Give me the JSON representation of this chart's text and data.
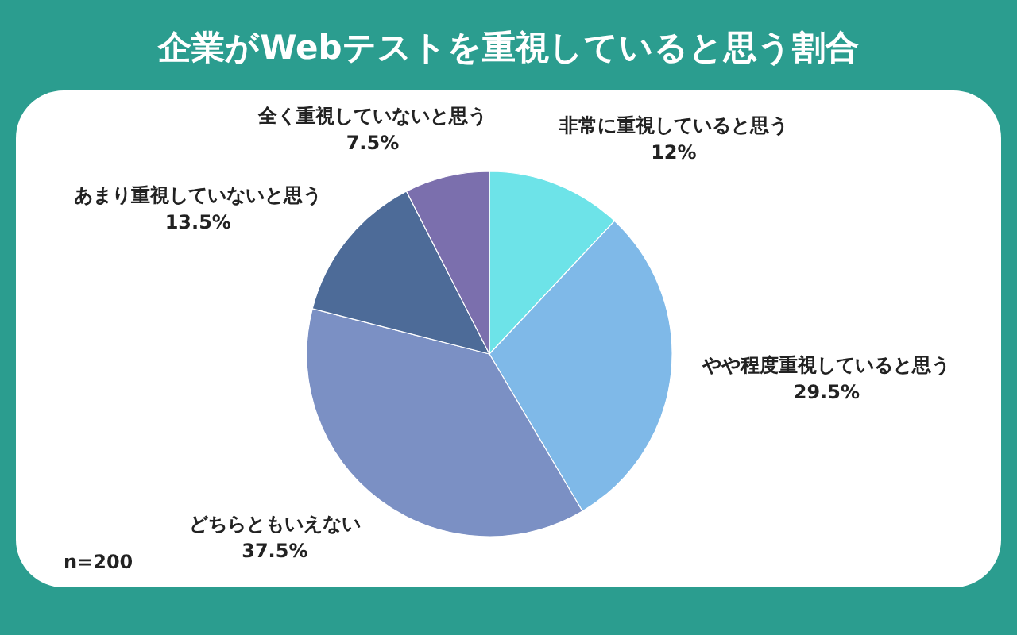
{
  "chart_data": {
    "type": "pie",
    "title": "企業がWebテストを重視していると思う割合",
    "categories": [
      "非常に重視していると思う",
      "やや程度重視していると思う",
      "どちらともいえない",
      "あまり重視していないと思う",
      "全く重視していないと思う"
    ],
    "values": [
      12,
      29.5,
      37.5,
      13.5,
      7.5
    ],
    "colors": [
      "#6de3e8",
      "#7fb9e8",
      "#7b90c4",
      "#4d6b98",
      "#7b6fad"
    ],
    "value_labels": [
      "12%",
      "29.5%",
      "37.5%",
      "13.5%",
      "7.5%"
    ],
    "annotations": [
      "n=200"
    ]
  }
}
